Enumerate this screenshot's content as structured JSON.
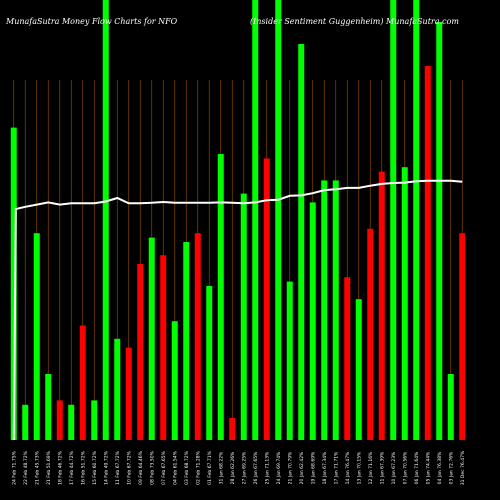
{
  "title_left": "MunafaSutra  Money Flow  Charts for NFO",
  "title_right": "(Insider Sentiment Guggenheim) MunafaSutra.com",
  "colors": {
    "background": "#000000",
    "up": "#00ff00",
    "down": "#ff0000",
    "line": "#ffffff",
    "grid": "#8b4a00"
  },
  "chart_data": {
    "type": "bar",
    "ylim": [
      0,
      100
    ],
    "categories": [
      "24 Feb 71.75%",
      "22 Feb 48.72%",
      "21 Feb 45.73%",
      "21 Feb 51.69%",
      "18 Feb 46.72%",
      "17 Feb 44.72%",
      "16 Feb 51.72%",
      "15 Feb 60.72%",
      "14 Feb 49.72%",
      "11 Feb 67.72%",
      "10 Feb 67.72%",
      "09 Feb 64.46%",
      "08 Feb 73.50%",
      "07 Feb 67.65%",
      "04 Feb 61.54%",
      "03 Feb 68.72%",
      "02 Feb 71.28%",
      "01 Feb 67.71%",
      "31 Jan 68.22%",
      "28 Jan 62.26%",
      "27 Jan 69.25%",
      "26 Jan 67.65%",
      "25 Jan 71.13%",
      "24 Jan 69.74%",
      "21 Jan 70.79%",
      "20 Jan 62.42%",
      "19 Jan 68.69%",
      "18 Jan 67.34%",
      "17 Jan 71.71%",
      "14 Jan 76.47%",
      "13 Jan 70.15%",
      "12 Jan 71.16%",
      "11 Jan 67.39%",
      "10 Jan 67.23%",
      "07 Jan 70.56%",
      "06 Jan 71.64%",
      "05 Jan 74.44%",
      "04 Jan 76.38%",
      "03 Jan 72.76%",
      "31 Dec 76.47%"
    ],
    "values": [
      71,
      8,
      47,
      15,
      9,
      8,
      26,
      9,
      100,
      23,
      21,
      40,
      46,
      42,
      27,
      45,
      47,
      35,
      65,
      5,
      56,
      100,
      64,
      100,
      36,
      90,
      54,
      59,
      59,
      37,
      32,
      48,
      61,
      100,
      62,
      100,
      85,
      95,
      15,
      47
    ],
    "directions": [
      "up",
      "up",
      "up",
      "up",
      "down",
      "up",
      "down",
      "up",
      "up",
      "up",
      "down",
      "down",
      "up",
      "down",
      "up",
      "up",
      "down",
      "up",
      "up",
      "down",
      "up",
      "up",
      "down",
      "up",
      "up",
      "up",
      "up",
      "up",
      "up",
      "down",
      "up",
      "down",
      "down",
      "up",
      "up",
      "up",
      "down",
      "up",
      "up",
      "down"
    ],
    "line_values": [
      52.5,
      53,
      53.5,
      54,
      53.5,
      53.8,
      53.8,
      53.8,
      54.2,
      55,
      53.8,
      53.8,
      53.9,
      54.1,
      53.9,
      53.9,
      53.9,
      53.9,
      54.0,
      53.9,
      53.8,
      54.0,
      54.5,
      54.6,
      55.5,
      55.6,
      56.1,
      56.8,
      57.0,
      57.3,
      57.3,
      57.8,
      58.2,
      58.4,
      58.5,
      58.8,
      58.9,
      58.9,
      58.9,
      58.7
    ],
    "grid": true
  }
}
